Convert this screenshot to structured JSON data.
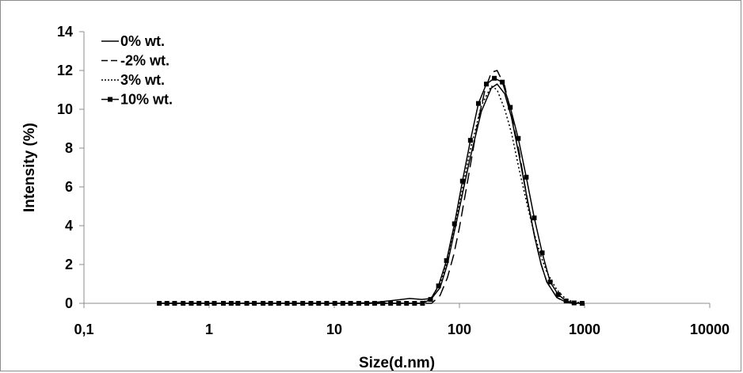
{
  "chart_data": {
    "type": "line",
    "xscale": "log",
    "xlabel": "Size(d.nm)",
    "ylabel": "Intensity (%)",
    "xlim": [
      0.1,
      10000
    ],
    "ylim": [
      0,
      14
    ],
    "x_ticks": [
      0.1,
      1,
      10,
      100,
      1000,
      10000
    ],
    "x_tick_labels": [
      "0,1",
      "1",
      "10",
      "100",
      "1000",
      "10000"
    ],
    "y_ticks": [
      0,
      2,
      4,
      6,
      8,
      10,
      12,
      14
    ],
    "y_tick_labels": [
      "0",
      "2",
      "4",
      "6",
      "8",
      "10",
      "12",
      "14"
    ],
    "grid": false,
    "legend_position": "top-left",
    "series": [
      {
        "name": "0% wt.",
        "style": "solid",
        "marker": "none",
        "x": [
          0.4,
          1,
          10,
          20,
          30,
          40,
          50,
          60,
          70,
          80,
          100,
          120,
          150,
          180,
          200,
          230,
          260,
          300,
          350,
          400,
          450,
          500,
          600,
          700,
          800,
          1000
        ],
        "y": [
          0,
          0,
          0,
          0.03,
          0.15,
          0.25,
          0.2,
          0.25,
          0.8,
          2.0,
          4.9,
          7.3,
          9.9,
          11.1,
          11.3,
          10.8,
          9.6,
          7.6,
          5.3,
          3.4,
          2.0,
          1.1,
          0.3,
          0.08,
          0,
          0
        ]
      },
      {
        "name": "-2% wt.",
        "style": "dashed",
        "marker": "none",
        "x": [
          0.4,
          1,
          10,
          50,
          60,
          70,
          80,
          90,
          100,
          120,
          140,
          160,
          180,
          200,
          230,
          260,
          300,
          350,
          400,
          450,
          500,
          600,
          700,
          800,
          1000
        ],
        "y": [
          0,
          0,
          0,
          0,
          0,
          0.4,
          1.3,
          2.5,
          3.9,
          6.8,
          9.3,
          11.0,
          11.9,
          12.0,
          11.2,
          9.7,
          7.8,
          5.3,
          3.4,
          2.0,
          1.1,
          0.3,
          0.05,
          0,
          0
        ]
      },
      {
        "name": "3% wt.",
        "style": "dotted",
        "marker": "none",
        "x": [
          0.4,
          1,
          10,
          50,
          60,
          70,
          80,
          100,
          120,
          150,
          180,
          200,
          230,
          260,
          300,
          350,
          400,
          450,
          500,
          600,
          700,
          800,
          1000
        ],
        "y": [
          0,
          0,
          0,
          0,
          0.3,
          1.0,
          2.2,
          5.1,
          7.7,
          10.2,
          11.2,
          11.0,
          10.0,
          8.8,
          6.9,
          5.0,
          3.5,
          2.4,
          1.6,
          0.7,
          0.25,
          0.08,
          0
        ]
      },
      {
        "name": "10% wt.",
        "style": "solid",
        "marker": "square",
        "x": [
          0.4,
          0.46,
          0.53,
          0.62,
          0.72,
          0.83,
          0.96,
          1.1,
          1.3,
          1.5,
          1.7,
          2.0,
          2.3,
          2.7,
          3.1,
          3.6,
          4.2,
          4.8,
          5.6,
          6.5,
          7.5,
          8.7,
          10.1,
          11.7,
          13.5,
          15.7,
          18.2,
          21.0,
          24.4,
          28.2,
          32.7,
          37.8,
          43.8,
          50.7,
          58.8,
          68.1,
          78.8,
          91.3,
          105.7,
          122.4,
          141.8,
          164.2,
          190.1,
          220.2,
          255.0,
          295.3,
          342.0,
          396.1,
          458.7,
          531.2,
          615.1,
          712.4,
          825.0,
          955.4
        ],
        "y": [
          0,
          0,
          0,
          0,
          0,
          0,
          0,
          0,
          0,
          0,
          0,
          0,
          0,
          0,
          0,
          0,
          0,
          0,
          0,
          0,
          0,
          0,
          0,
          0,
          0,
          0,
          0,
          0,
          0,
          0,
          0,
          0,
          0,
          0,
          0.2,
          0.9,
          2.2,
          4.1,
          6.3,
          8.4,
          10.3,
          11.3,
          11.6,
          11.4,
          10.1,
          8.5,
          6.5,
          4.4,
          2.6,
          1.1,
          0.45,
          0.12,
          0.02,
          0
        ]
      }
    ]
  }
}
